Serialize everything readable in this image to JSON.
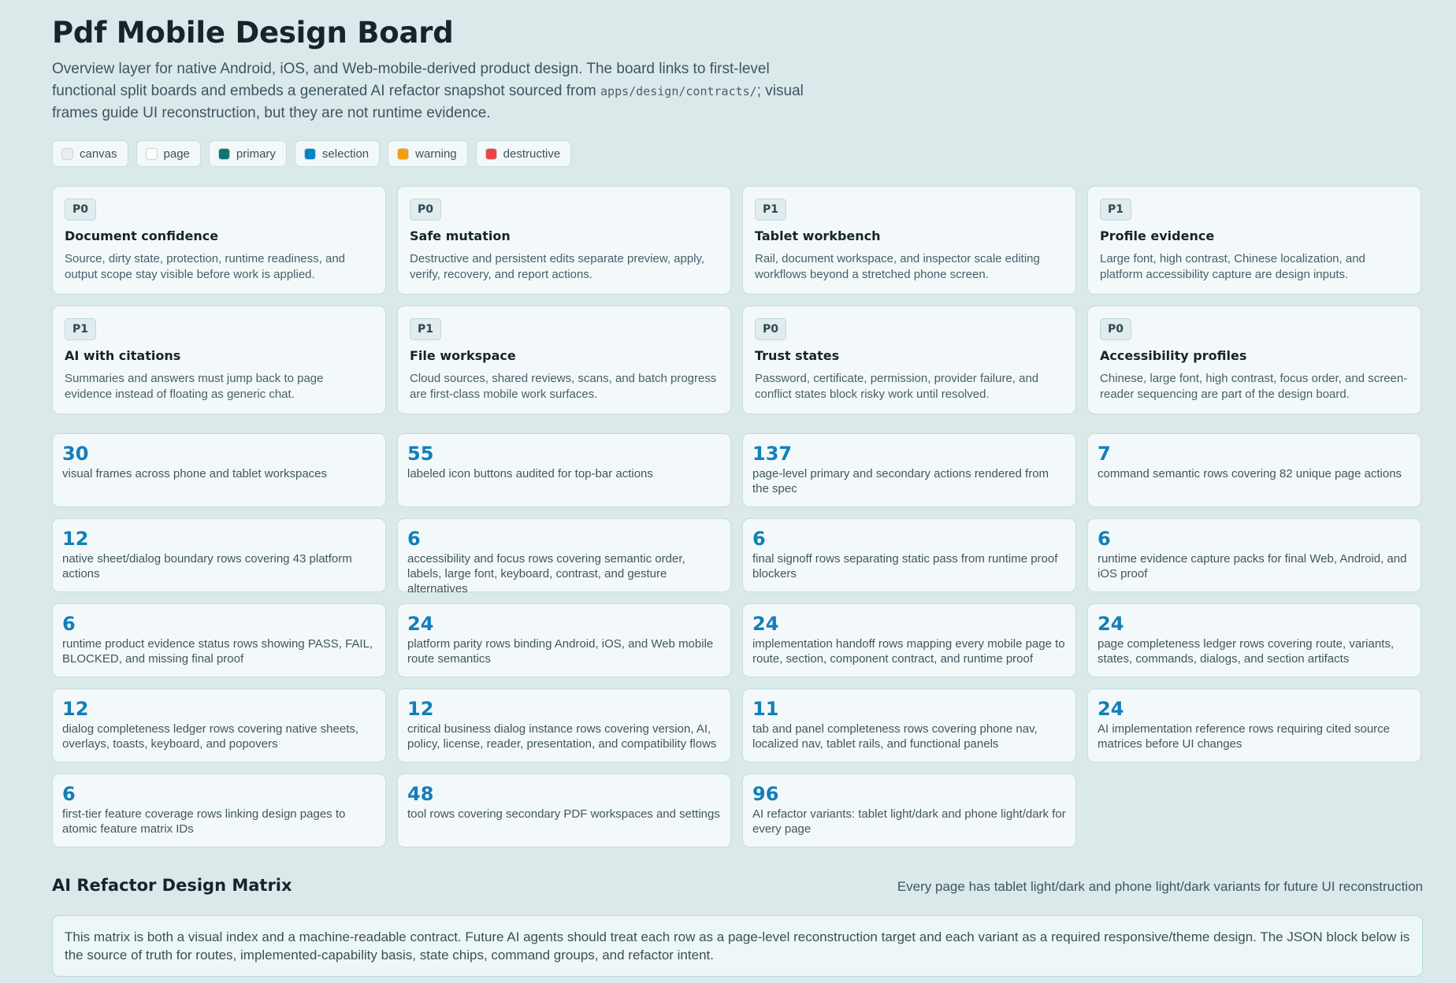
{
  "title": "Pdf Mobile Design Board",
  "intro": {
    "before_code": "Overview layer for native Android, iOS, and Web-mobile-derived product design. The board links to first-level functional split boards and embeds a generated AI refactor snapshot sourced from ",
    "code": "apps/design/contracts/",
    "after_code": "; visual frames guide UI reconstruction, but they are not runtime evidence."
  },
  "legend": [
    {
      "label": "canvas",
      "color": "#e8eef0"
    },
    {
      "label": "page",
      "color": "#ffffff"
    },
    {
      "label": "primary",
      "color": "#0f766e"
    },
    {
      "label": "selection",
      "color": "#0284c7"
    },
    {
      "label": "warning",
      "color": "#f59e0b"
    },
    {
      "label": "destructive",
      "color": "#ef4444"
    }
  ],
  "features": [
    {
      "priority": "P0",
      "title": "Document confidence",
      "desc": "Source, dirty state, protection, runtime readiness, and output scope stay visible before work is applied."
    },
    {
      "priority": "P0",
      "title": "Safe mutation",
      "desc": "Destructive and persistent edits separate preview, apply, verify, recovery, and report actions."
    },
    {
      "priority": "P1",
      "title": "Tablet workbench",
      "desc": "Rail, document workspace, and inspector scale editing workflows beyond a stretched phone screen."
    },
    {
      "priority": "P1",
      "title": "Profile evidence",
      "desc": "Large font, high contrast, Chinese localization, and platform accessibility capture are design inputs."
    },
    {
      "priority": "P1",
      "title": "AI with citations",
      "desc": "Summaries and answers must jump back to page evidence instead of floating as generic chat."
    },
    {
      "priority": "P1",
      "title": "File workspace",
      "desc": "Cloud sources, shared reviews, scans, and batch progress are first-class mobile work surfaces."
    },
    {
      "priority": "P0",
      "title": "Trust states",
      "desc": "Password, certificate, permission, provider failure, and conflict states block risky work until resolved."
    },
    {
      "priority": "P0",
      "title": "Accessibility profiles",
      "desc": "Chinese, large font, high contrast, focus order, and screen-reader sequencing are part of the design board."
    }
  ],
  "metrics": [
    {
      "value": "30",
      "desc": "visual frames across phone and tablet workspaces"
    },
    {
      "value": "55",
      "desc": "labeled icon buttons audited for top-bar actions"
    },
    {
      "value": "137",
      "desc": "page-level primary and secondary actions rendered from the spec"
    },
    {
      "value": "7",
      "desc": "command semantic rows covering 82 unique page actions"
    },
    {
      "value": "12",
      "desc": "native sheet/dialog boundary rows covering 43 platform actions"
    },
    {
      "value": "6",
      "desc": "accessibility and focus rows covering semantic order, labels, large font, keyboard, contrast, and gesture alternatives"
    },
    {
      "value": "6",
      "desc": "final signoff rows separating static pass from runtime proof blockers"
    },
    {
      "value": "6",
      "desc": "runtime evidence capture packs for final Web, Android, and iOS proof"
    },
    {
      "value": "6",
      "desc": "runtime product evidence status rows showing PASS, FAIL, BLOCKED, and missing final proof"
    },
    {
      "value": "24",
      "desc": "platform parity rows binding Android, iOS, and Web mobile route semantics"
    },
    {
      "value": "24",
      "desc": "implementation handoff rows mapping every mobile page to route, section, component contract, and runtime proof"
    },
    {
      "value": "24",
      "desc": "page completeness ledger rows covering route, variants, states, commands, dialogs, and section artifacts"
    },
    {
      "value": "12",
      "desc": "dialog completeness ledger rows covering native sheets, overlays, toasts, keyboard, and popovers"
    },
    {
      "value": "12",
      "desc": "critical business dialog instance rows covering version, AI, policy, license, reader, presentation, and compatibility flows"
    },
    {
      "value": "11",
      "desc": "tab and panel completeness rows covering phone nav, localized nav, tablet rails, and functional panels"
    },
    {
      "value": "24",
      "desc": "AI implementation reference rows requiring cited source matrices before UI changes"
    },
    {
      "value": "6",
      "desc": "first-tier feature coverage rows linking design pages to atomic feature matrix IDs"
    },
    {
      "value": "48",
      "desc": "tool rows covering secondary PDF workspaces and settings"
    },
    {
      "value": "96",
      "desc": "AI refactor variants: tablet light/dark and phone light/dark for every page"
    }
  ],
  "matrix": {
    "title": "AI Refactor Design Matrix",
    "note": "Every page has tablet light/dark and phone light/dark variants for future UI reconstruction",
    "body": "This matrix is both a visual index and a machine-readable contract. Future AI agents should treat each row as a page-level reconstruction target and each variant as a required responsive/theme design. The JSON block below is the source of truth for routes, implemented-capability basis, state chips, command groups, and refactor intent."
  }
}
